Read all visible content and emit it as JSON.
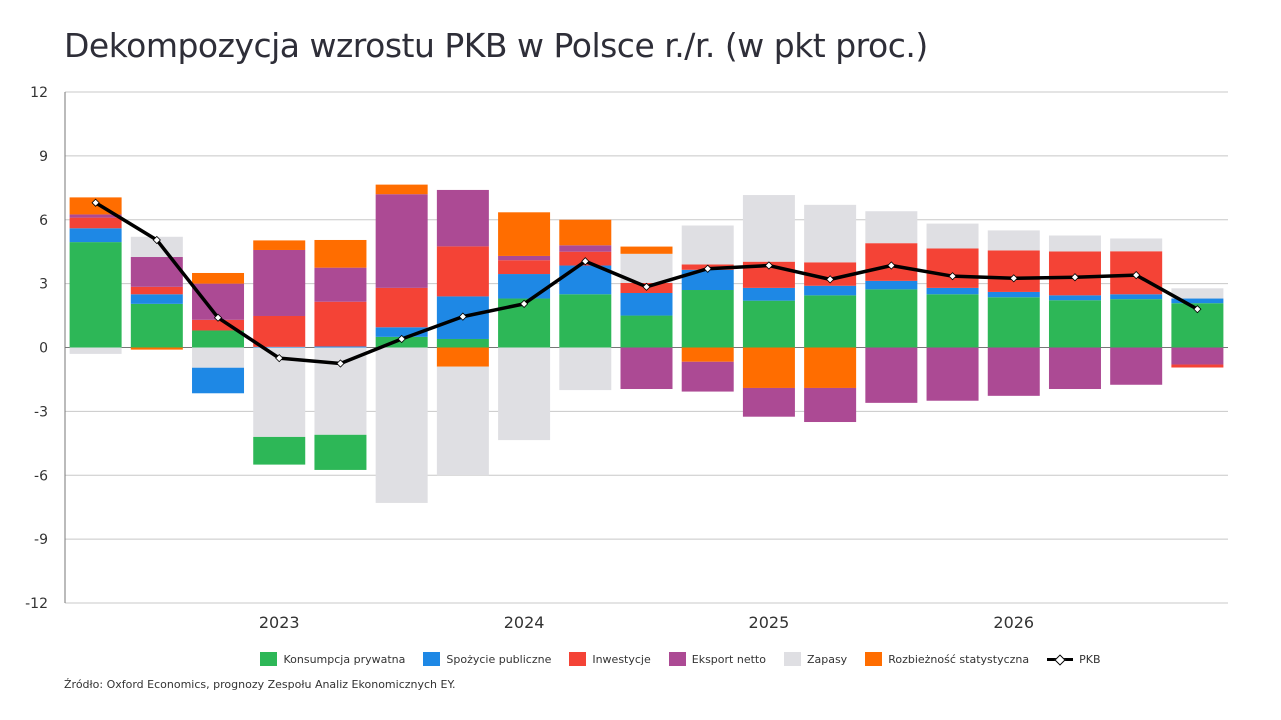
{
  "title": "Dekompozycja wzrostu PKB w Polsce r./r. (w pkt proc.)",
  "source": "Źródło: Oxford Economics, prognozy Zespołu Analiz Ekonomicznych EY.",
  "chart_data": {
    "type": "bar",
    "stacked": true,
    "title": "Dekompozycja wzrostu PKB w Polsce r./r. (w pkt proc.)",
    "xlabel": "",
    "ylabel": "",
    "ylim": [
      -12,
      12
    ],
    "yticks": [
      12,
      9,
      6,
      3,
      0,
      -3,
      -6,
      -9,
      -12
    ],
    "grid": true,
    "legend_position": "bottom",
    "x_tick_labels": [
      {
        "index": 3,
        "label": "2023"
      },
      {
        "index": 7,
        "label": "2024"
      },
      {
        "index": 11,
        "label": "2025"
      },
      {
        "index": 15,
        "label": "2026"
      }
    ],
    "categories": [
      "1",
      "2",
      "3",
      "4",
      "5",
      "6",
      "7",
      "8",
      "9",
      "10",
      "11",
      "12",
      "13",
      "14",
      "15",
      "16",
      "17",
      "18",
      "19"
    ],
    "series": [
      {
        "name": "Konsumpcja prywatna",
        "color": "#2db757",
        "values": [
          4.95,
          2.05,
          0.8,
          -1.3,
          -1.65,
          0.5,
          0.4,
          2.3,
          2.5,
          1.5,
          2.7,
          2.2,
          2.45,
          2.73,
          2.5,
          2.36,
          2.22,
          2.27,
          2.08
        ]
      },
      {
        "name": "Spożycie publiczne",
        "color": "#1e88e5",
        "values": [
          0.65,
          0.45,
          -1.2,
          0.03,
          0.05,
          0.45,
          2.0,
          1.15,
          1.35,
          1.06,
          0.95,
          0.6,
          0.45,
          0.4,
          0.3,
          0.25,
          0.23,
          0.23,
          0.22
        ]
      },
      {
        "name": "Inwestycje",
        "color": "#f44336",
        "values": [
          0.5,
          0.35,
          0.5,
          1.45,
          2.1,
          1.85,
          2.35,
          0.65,
          0.65,
          0.47,
          0.25,
          1.23,
          1.1,
          1.77,
          1.85,
          1.95,
          2.06,
          2.02,
          -0.14
        ]
      },
      {
        "name": "Eksport netto",
        "color": "#ac4a94",
        "values": [
          0.15,
          1.4,
          1.7,
          3.1,
          1.6,
          4.4,
          2.65,
          0.2,
          0.3,
          -1.95,
          -1.4,
          -1.35,
          -1.6,
          -2.6,
          -2.5,
          -2.27,
          -1.95,
          -1.75,
          -0.8
        ]
      },
      {
        "name": "Zapasy",
        "color": "#dfdfe3",
        "values": [
          -0.3,
          0.95,
          -0.95,
          -4.2,
          -4.1,
          -7.3,
          -5.1,
          -4.35,
          -2.0,
          1.37,
          1.83,
          3.13,
          2.7,
          1.5,
          1.17,
          0.94,
          0.75,
          0.6,
          0.48
        ]
      },
      {
        "name": "Rozbieżność statystyczna",
        "color": "#ff6d00",
        "values": [
          0.8,
          -0.1,
          0.5,
          0.45,
          1.3,
          0.45,
          -0.9,
          2.05,
          1.2,
          0.34,
          -0.67,
          -1.9,
          -1.9,
          0,
          0,
          0,
          0,
          0,
          0
        ]
      }
    ],
    "line": {
      "name": "PKB",
      "color": "#000000",
      "values": [
        6.8,
        5.05,
        1.4,
        -0.5,
        -0.75,
        0.4,
        1.45,
        2.05,
        4.05,
        2.85,
        3.7,
        3.85,
        3.2,
        3.85,
        3.35,
        3.25,
        3.3,
        3.4,
        1.8
      ]
    }
  }
}
